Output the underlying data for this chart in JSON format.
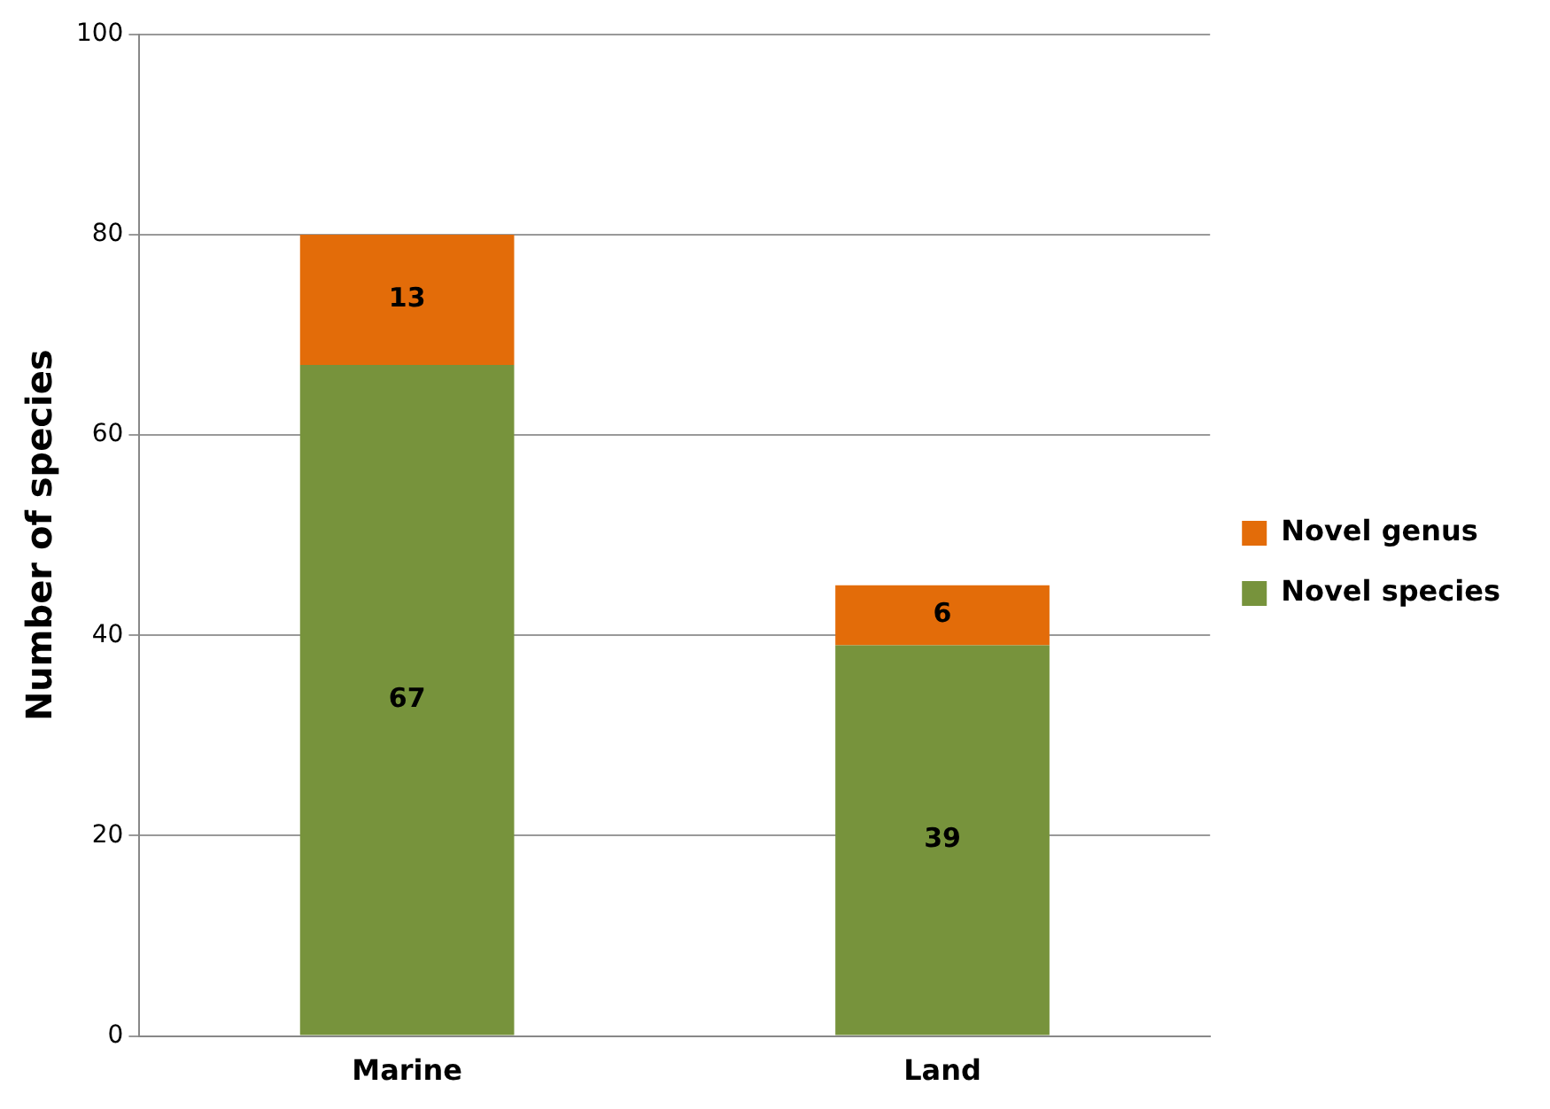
{
  "chart_data": {
    "type": "bar",
    "ylabel": "Number of species",
    "categories": [
      "Marine",
      "Land"
    ],
    "stacked": true,
    "series": [
      {
        "name": "Novel species",
        "color": "#77933c",
        "values": [
          67,
          39
        ]
      },
      {
        "name": "Novel genus",
        "color": "#e36c09",
        "values": [
          13,
          6
        ]
      }
    ],
    "ylim": [
      0,
      100
    ],
    "yticks": [
      0,
      20,
      40,
      60,
      80,
      100
    ],
    "grid": "y",
    "legend": "right",
    "data_labels": true
  }
}
